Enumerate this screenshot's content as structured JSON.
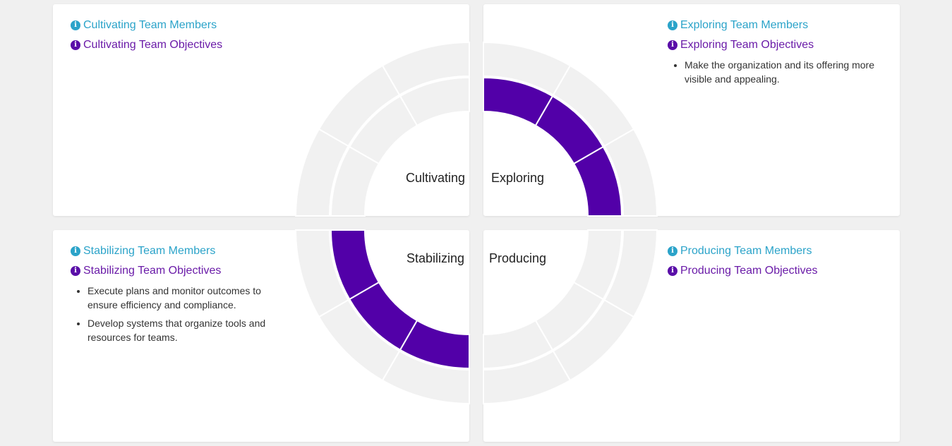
{
  "colors": {
    "background": "#f0f0f0",
    "card": "#ffffff",
    "segment_inactive": "#f1f1f1",
    "segment_active": "#5200a8",
    "segment_separator": "#ffffff",
    "members_link": "#2ba3c9",
    "objectives_link": "#6a1ba8"
  },
  "icon": "info-circle-icon",
  "quadrants": {
    "cultivating": {
      "label": "Cultivating",
      "members_link": "Cultivating Team Members",
      "objectives_link": "Cultivating Team Objectives",
      "objectives": [],
      "active_rings": {
        "inner": [],
        "outer": []
      }
    },
    "exploring": {
      "label": "Exploring",
      "members_link": "Exploring Team Members",
      "objectives_link": "Exploring Team Objectives",
      "objectives": [
        "Make the organization and its offering more visible and appealing."
      ],
      "active_rings": {
        "inner": [
          0,
          1,
          2
        ],
        "outer": []
      }
    },
    "stabilizing": {
      "label": "Stabilizing",
      "members_link": "Stabilizing Team Members",
      "objectives_link": "Stabilizing Team Objectives",
      "objectives": [
        "Execute plans and monitor outcomes to ensure efficiency and compliance.",
        "Develop systems that organize tools and resources for teams."
      ],
      "active_rings": {
        "inner": [
          0,
          1,
          2
        ],
        "outer": []
      }
    },
    "producing": {
      "label": "Producing",
      "members_link": "Producing Team Members",
      "objectives_link": "Producing Team Objectives",
      "objectives": [],
      "active_rings": {
        "inner": [],
        "outer": []
      }
    }
  }
}
